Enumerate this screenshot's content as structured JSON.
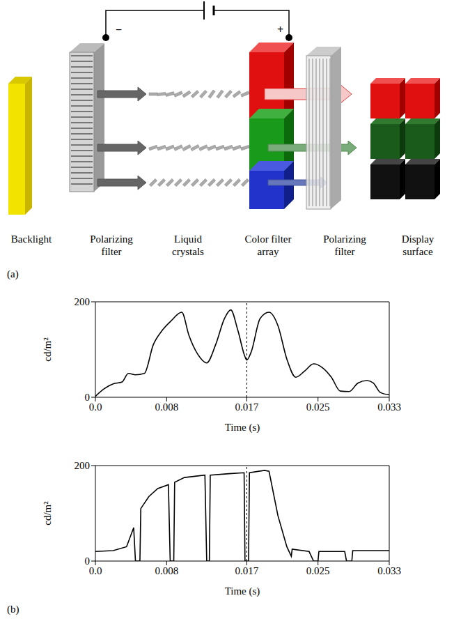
{
  "diagram": {
    "panel_label": "(a)",
    "layers": [
      "Backlight",
      "Polarizing filter",
      "Liquid crystals",
      "Color filter array",
      "Polarizing filter",
      "Display surface"
    ],
    "polarity": [
      "−",
      "+"
    ]
  },
  "chart_data": [
    {
      "type": "line",
      "x_label": "Time (s)",
      "y_label": "cd/m²",
      "x": [
        0,
        0.001,
        0.002,
        0.003,
        0.0037,
        0.0045,
        0.0055,
        0.0065,
        0.0075,
        0.0085,
        0.0097,
        0.0105,
        0.0115,
        0.0125,
        0.0135,
        0.0145,
        0.0152,
        0.016,
        0.0168,
        0.017,
        0.0175,
        0.0185,
        0.0195,
        0.0205,
        0.0215,
        0.0225,
        0.0235,
        0.0245,
        0.0255,
        0.0265,
        0.0275,
        0.0285,
        0.0295,
        0.0305,
        0.0312,
        0.032,
        0.033
      ],
      "values": [
        2,
        18,
        28,
        32,
        50,
        47,
        50,
        110,
        140,
        160,
        178,
        130,
        90,
        72,
        110,
        165,
        183,
        140,
        85,
        78,
        95,
        165,
        178,
        150,
        80,
        42,
        55,
        70,
        62,
        42,
        13,
        12,
        30,
        35,
        30,
        10,
        5
      ],
      "xlim": [
        0,
        0.033
      ],
      "xticks": [
        {
          "value": 0,
          "label": "0.0"
        },
        0.008,
        0.017,
        0.025,
        0.033
      ],
      "ylim": [
        0,
        200
      ],
      "yticks": [
        0,
        200
      ],
      "reference_x": 0.017,
      "color": "#000000",
      "line_style": "smooth"
    },
    {
      "type": "line",
      "panel_label": "(b)",
      "x_label": "Time (s)",
      "y_label": "cd/m²",
      "x": [
        0,
        0.002,
        0.0035,
        0.0043,
        0.0045,
        0.005,
        0.0051,
        0.006,
        0.007,
        0.0082,
        0.0084,
        0.0088,
        0.0089,
        0.01,
        0.0123,
        0.0125,
        0.0128,
        0.0129,
        0.015,
        0.0167,
        0.0168,
        0.0172,
        0.0173,
        0.019,
        0.0195,
        0.0205,
        0.0215,
        0.022,
        0.0221,
        0.024,
        0.0245,
        0.025,
        0.0251,
        0.028,
        0.0282,
        0.0288,
        0.0289,
        0.033
      ],
      "values": [
        20,
        22,
        30,
        70,
        0,
        0,
        110,
        135,
        152,
        160,
        0,
        0,
        165,
        175,
        180,
        0,
        0,
        180,
        183,
        185,
        0,
        0,
        185,
        190,
        188,
        95,
        30,
        10,
        25,
        20,
        0,
        0,
        20,
        20,
        0,
        0,
        22,
        22
      ],
      "xlim": [
        0,
        0.033
      ],
      "xticks": [
        {
          "value": 0,
          "label": "0.0"
        },
        0.008,
        0.017,
        0.025,
        0.033
      ],
      "ylim": [
        0,
        200
      ],
      "yticks": [
        0,
        200
      ],
      "reference_x": 0.017,
      "color": "#000000",
      "line_style": "solid"
    }
  ]
}
